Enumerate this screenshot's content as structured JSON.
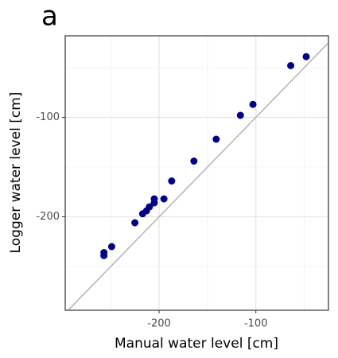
{
  "chart_data": {
    "type": "scatter",
    "title": "a",
    "x_label": "Manual water level [cm]",
    "y_label": "Logger water level [cm]",
    "xlim": [
      -297,
      -25
    ],
    "ylim": [
      -294,
      -18
    ],
    "xticks": [
      -200,
      -100
    ],
    "yticks": [
      -200,
      -100
    ],
    "grid": true,
    "identity_line": true,
    "color": "#00008b",
    "x": [
      -48,
      -64,
      -103,
      -116,
      -141,
      -164,
      -187,
      -195,
      -205,
      -205,
      -210,
      -213,
      -217,
      -225,
      -249,
      -257,
      -257
    ],
    "values": [
      -39,
      -48,
      -87,
      -98,
      -122,
      -144,
      -164,
      -182,
      -182,
      -186,
      -190,
      -194,
      -197,
      -206,
      -230,
      -236,
      -239
    ]
  }
}
